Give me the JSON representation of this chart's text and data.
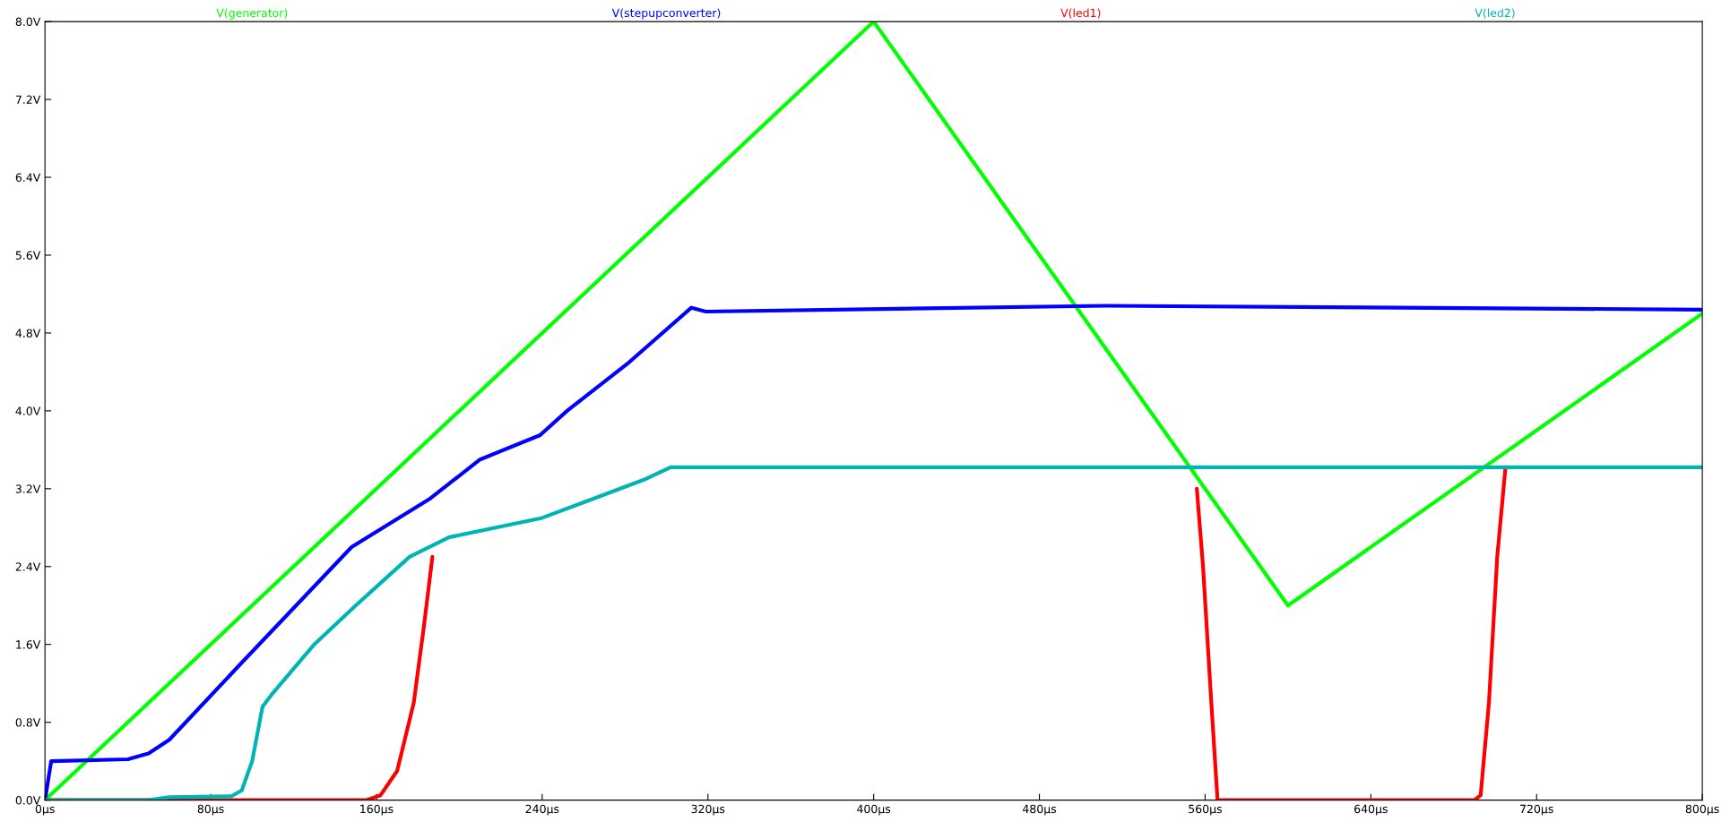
{
  "chart_data": {
    "type": "line",
    "legend": "top",
    "grid": false,
    "marker": "none",
    "line_style": "solid",
    "xlim": [
      0,
      800
    ],
    "ylim": [
      0,
      8.0
    ],
    "xticks": [
      {
        "value": 0,
        "label": "0µs"
      },
      {
        "value": 80,
        "label": "80µs"
      },
      {
        "value": 160,
        "label": "160µs"
      },
      {
        "value": 240,
        "label": "240µs"
      },
      {
        "value": 320,
        "label": "320µs"
      },
      {
        "value": 400,
        "label": "400µs"
      },
      {
        "value": 480,
        "label": "480µs"
      },
      {
        "value": 560,
        "label": "560µs"
      },
      {
        "value": 640,
        "label": "640µs"
      },
      {
        "value": 720,
        "label": "720µs"
      },
      {
        "value": 800,
        "label": "800µs"
      }
    ],
    "yticks": [
      {
        "value": 0,
        "label": "0.0V"
      },
      {
        "value": 0.8,
        "label": "0.8V"
      },
      {
        "value": 1.6,
        "label": "1.6V"
      },
      {
        "value": 2.4,
        "label": "2.4V"
      },
      {
        "value": 3.2,
        "label": "3.2V"
      },
      {
        "value": 4.0,
        "label": "4.0V"
      },
      {
        "value": 4.8,
        "label": "4.8V"
      },
      {
        "value": 5.6,
        "label": "5.6V"
      },
      {
        "value": 6.4,
        "label": "6.4V"
      },
      {
        "value": 7.2,
        "label": "7.2V"
      },
      {
        "value": 8.0,
        "label": "8.0V"
      }
    ],
    "series": [
      {
        "name": "V(generator)",
        "color": "#00ff00",
        "x": [
          0,
          400,
          600,
          800
        ],
        "values": [
          0,
          8.0,
          2.0,
          5.0
        ]
      },
      {
        "name": "V(stepupconverter)",
        "color": "#0000ff",
        "x": [
          0,
          3,
          40,
          50,
          60,
          94,
          148,
          186,
          210,
          239,
          252,
          282,
          312,
          319,
          512,
          800
        ],
        "values": [
          0,
          0.4,
          0.42,
          0.48,
          0.62,
          1.39,
          2.6,
          3.1,
          3.5,
          3.75,
          4.0,
          4.5,
          5.06,
          5.02,
          5.08,
          5.04
        ]
      },
      {
        "name": "V(led1)",
        "color": "#ff0000",
        "x": [
          0,
          155,
          162,
          170,
          178,
          183,
          187,
          555,
          556,
          559,
          563,
          566,
          690,
          693,
          697,
          701,
          705
        ],
        "values": [
          0,
          0,
          0.05,
          0.3,
          1.0,
          1.8,
          2.5,
          null,
          3.2,
          2.4,
          1.0,
          0,
          0,
          0.05,
          1.0,
          2.5,
          3.42
        ]
      },
      {
        "name": "V(led2)",
        "color": "#00b4b4",
        "x": [
          0,
          50,
          60,
          90,
          95,
          100,
          105,
          110,
          130,
          150,
          176,
          195,
          240,
          265,
          290,
          302,
          800
        ],
        "values": [
          0,
          0,
          0.03,
          0.04,
          0.1,
          0.4,
          0.96,
          1.1,
          1.6,
          2.0,
          2.5,
          2.7,
          2.9,
          3.1,
          3.3,
          3.42,
          3.42
        ]
      }
    ]
  }
}
